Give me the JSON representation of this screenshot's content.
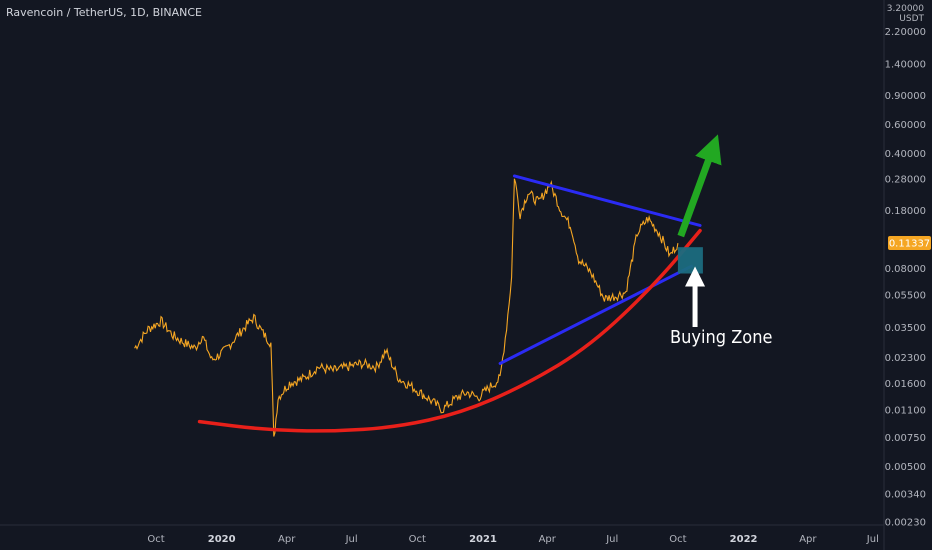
{
  "header": {
    "symbol_line": "Ravencoin / TetherUS, 1D, BINANCE"
  },
  "price_axis": {
    "top_label": "3.20000",
    "currency": "USDT"
  },
  "chart_data": {
    "type": "line",
    "title": "Ravencoin / TetherUS, 1D, BINANCE",
    "xlabel": "",
    "ylabel": "USDT",
    "y_scale": "log",
    "y_ticks": [
      "2.20000",
      "1.40000",
      "0.90000",
      "0.60000",
      "0.40000",
      "0.28000",
      "0.18000",
      "0.08000",
      "0.05500",
      "0.03500",
      "0.02300",
      "0.01600",
      "0.01100",
      "0.00750",
      "0.00500",
      "0.00340",
      "0.00230"
    ],
    "x_ticks": [
      {
        "label": "Oct",
        "date": "2019-10-01",
        "bold": false
      },
      {
        "label": "2020",
        "date": "2020-01-01",
        "bold": true
      },
      {
        "label": "Apr",
        "date": "2020-04-01",
        "bold": false
      },
      {
        "label": "Jul",
        "date": "2020-07-01",
        "bold": false
      },
      {
        "label": "Oct",
        "date": "2020-10-01",
        "bold": false
      },
      {
        "label": "2021",
        "date": "2021-01-01",
        "bold": true
      },
      {
        "label": "Apr",
        "date": "2021-04-01",
        "bold": false
      },
      {
        "label": "Jul",
        "date": "2021-07-01",
        "bold": false
      },
      {
        "label": "Oct",
        "date": "2021-10-01",
        "bold": false
      },
      {
        "label": "2022",
        "date": "2022-01-01",
        "bold": true
      },
      {
        "label": "Apr",
        "date": "2022-04-01",
        "bold": false
      },
      {
        "label": "Jul",
        "date": "2022-07-01",
        "bold": false
      }
    ],
    "last_price": "0.11337",
    "series": [
      {
        "color": "#f5a623",
        "points": [
          [
            "2019-09-01",
            0.026
          ],
          [
            "2019-09-20",
            0.034
          ],
          [
            "2019-10-08",
            0.038
          ],
          [
            "2019-10-25",
            0.031
          ],
          [
            "2019-11-10",
            0.028
          ],
          [
            "2019-11-25",
            0.026
          ],
          [
            "2019-12-05",
            0.031
          ],
          [
            "2019-12-18",
            0.022
          ],
          [
            "2020-01-05",
            0.025
          ],
          [
            "2020-01-20",
            0.03
          ],
          [
            "2020-02-05",
            0.036
          ],
          [
            "2020-02-15",
            0.04
          ],
          [
            "2020-02-28",
            0.032
          ],
          [
            "2020-03-10",
            0.028
          ],
          [
            "2020-03-14",
            0.0072
          ],
          [
            "2020-03-20",
            0.013
          ],
          [
            "2020-04-05",
            0.016
          ],
          [
            "2020-04-25",
            0.017
          ],
          [
            "2020-05-15",
            0.02
          ],
          [
            "2020-06-05",
            0.019
          ],
          [
            "2020-06-25",
            0.02
          ],
          [
            "2020-07-15",
            0.021
          ],
          [
            "2020-08-05",
            0.02
          ],
          [
            "2020-08-18",
            0.025
          ],
          [
            "2020-09-05",
            0.017
          ],
          [
            "2020-09-25",
            0.015
          ],
          [
            "2020-10-15",
            0.013
          ],
          [
            "2020-11-05",
            0.011
          ],
          [
            "2020-11-25",
            0.013
          ],
          [
            "2020-12-10",
            0.014
          ],
          [
            "2020-12-25",
            0.013
          ],
          [
            "2021-01-10",
            0.015
          ],
          [
            "2021-01-25",
            0.017
          ],
          [
            "2021-02-03",
            0.035
          ],
          [
            "2021-02-10",
            0.07
          ],
          [
            "2021-02-14",
            0.29
          ],
          [
            "2021-02-22",
            0.17
          ],
          [
            "2021-03-05",
            0.23
          ],
          [
            "2021-03-20",
            0.2
          ],
          [
            "2021-04-05",
            0.26
          ],
          [
            "2021-04-20",
            0.18
          ],
          [
            "2021-05-05",
            0.14
          ],
          [
            "2021-05-15",
            0.09
          ],
          [
            "2021-06-01",
            0.075
          ],
          [
            "2021-06-20",
            0.052
          ],
          [
            "2021-07-05",
            0.054
          ],
          [
            "2021-07-20",
            0.057
          ],
          [
            "2021-08-05",
            0.13
          ],
          [
            "2021-08-20",
            0.16
          ],
          [
            "2021-09-05",
            0.13
          ],
          [
            "2021-09-20",
            0.095
          ],
          [
            "2021-10-01",
            0.11337
          ]
        ]
      }
    ],
    "annotations": [
      {
        "type": "trendline",
        "color": "#2b2bf5",
        "from": [
          "2021-02-14",
          0.29
        ],
        "to": [
          "2021-11-01",
          0.145
        ]
      },
      {
        "type": "trendline",
        "color": "#2b2bf5",
        "from": [
          "2021-01-25",
          0.021
        ],
        "to": [
          "2021-10-20",
          0.082
        ]
      },
      {
        "type": "curve",
        "color": "#e8201a",
        "points": [
          [
            "2019-12-01",
            0.0093
          ],
          [
            "2020-03-01",
            0.0083
          ],
          [
            "2020-06-01",
            0.0081
          ],
          [
            "2020-09-01",
            0.0086
          ],
          [
            "2020-12-01",
            0.0105
          ],
          [
            "2021-03-01",
            0.0155
          ],
          [
            "2021-06-01",
            0.027
          ],
          [
            "2021-09-01",
            0.065
          ],
          [
            "2021-11-01",
            0.135
          ]
        ]
      },
      {
        "type": "arrow",
        "color": "#22a822",
        "from": [
          "2021-10-05",
          0.125
        ],
        "to": [
          "2021-11-20",
          0.44
        ]
      },
      {
        "type": "box",
        "color": "#1b6b80",
        "from": [
          "2021-10-01",
          0.107
        ],
        "to": [
          "2021-11-05",
          0.074
        ]
      },
      {
        "type": "arrow",
        "color": "#ffffff",
        "from": [
          "2021-10-25",
          0.035
        ],
        "to": [
          "2021-10-25",
          0.072
        ]
      },
      {
        "type": "text",
        "text": "Buying Zone",
        "at": [
          "2021-09-20",
          0.028
        ]
      }
    ]
  }
}
